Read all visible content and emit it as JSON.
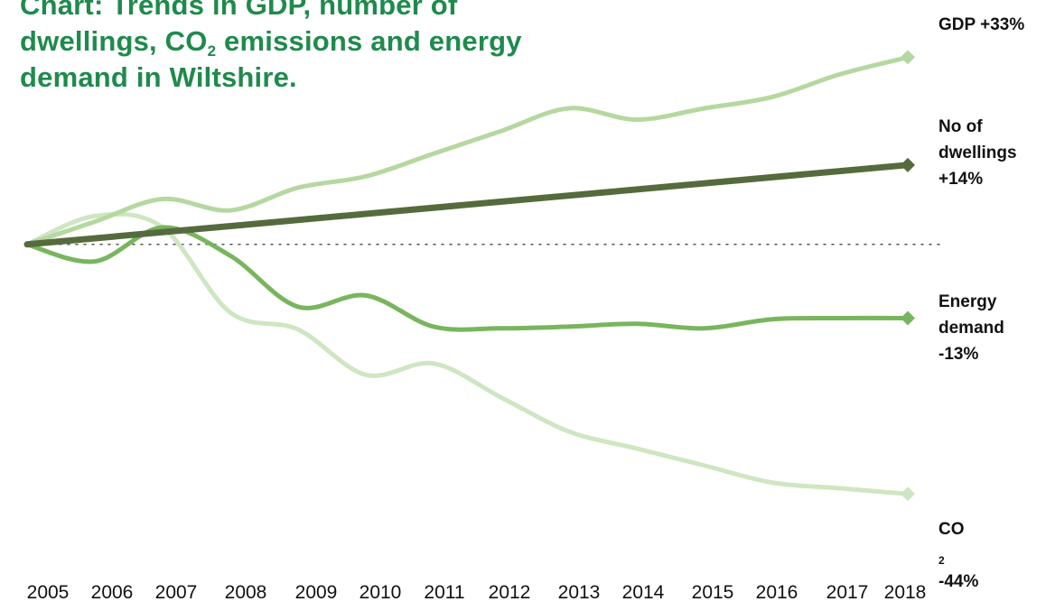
{
  "title": {
    "line1": "Chart: Trends in GDP, number of",
    "line2a": "dwellings, CO",
    "line2sub": "2",
    "line2b": " emissions and energy",
    "line3": "demand in Wiltshire."
  },
  "colors": {
    "gdp": "#b5d8a0",
    "dwellings": "#556b3e",
    "energy": "#79b55e",
    "co2": "#cfe6c2",
    "title": "#1f8a4c",
    "baseline": "#555555"
  },
  "chart_data": {
    "type": "line",
    "x": [
      2005,
      2006,
      2007,
      2008,
      2009,
      2010,
      2011,
      2012,
      2013,
      2014,
      2015,
      2016,
      2017,
      2018
    ],
    "ylim": [
      -50,
      38
    ],
    "baseline": 0,
    "grid": false,
    "x_tick_labels": [
      "2005",
      "2006",
      "2007",
      "2008",
      "2009",
      "2010",
      "2011",
      "2012",
      "2013",
      "2014",
      "2015",
      "2016",
      "2017",
      "2018"
    ],
    "series": [
      {
        "key": "gdp",
        "end_label": [
          "GDP +33%"
        ],
        "values": [
          0,
          4,
          8,
          6,
          10,
          12,
          16,
          20,
          24,
          22,
          24,
          26,
          30,
          33
        ]
      },
      {
        "key": "dwellings",
        "end_label": [
          "No of",
          "dwellings",
          "+14%"
        ],
        "values": [
          0,
          1.1,
          2.2,
          3.2,
          4.3,
          5.4,
          6.5,
          7.5,
          8.6,
          9.7,
          10.8,
          11.8,
          12.9,
          14
        ]
      },
      {
        "key": "energy",
        "end_label": [
          "Energy",
          "demand",
          "-13%"
        ],
        "values": [
          0,
          -3,
          3,
          -2,
          -11,
          -9,
          -14.5,
          -14.8,
          -14.5,
          -14,
          -14.8,
          -13.2,
          -13,
          -13
        ]
      },
      {
        "key": "co2",
        "end_label_prefix": "CO",
        "end_label_sub": "2",
        "end_label_suffix": " -44%",
        "values": [
          0,
          5,
          3,
          -12,
          -15,
          -23,
          -21,
          -27,
          -33,
          -36,
          -39,
          -42,
          -43,
          -44
        ]
      }
    ]
  }
}
